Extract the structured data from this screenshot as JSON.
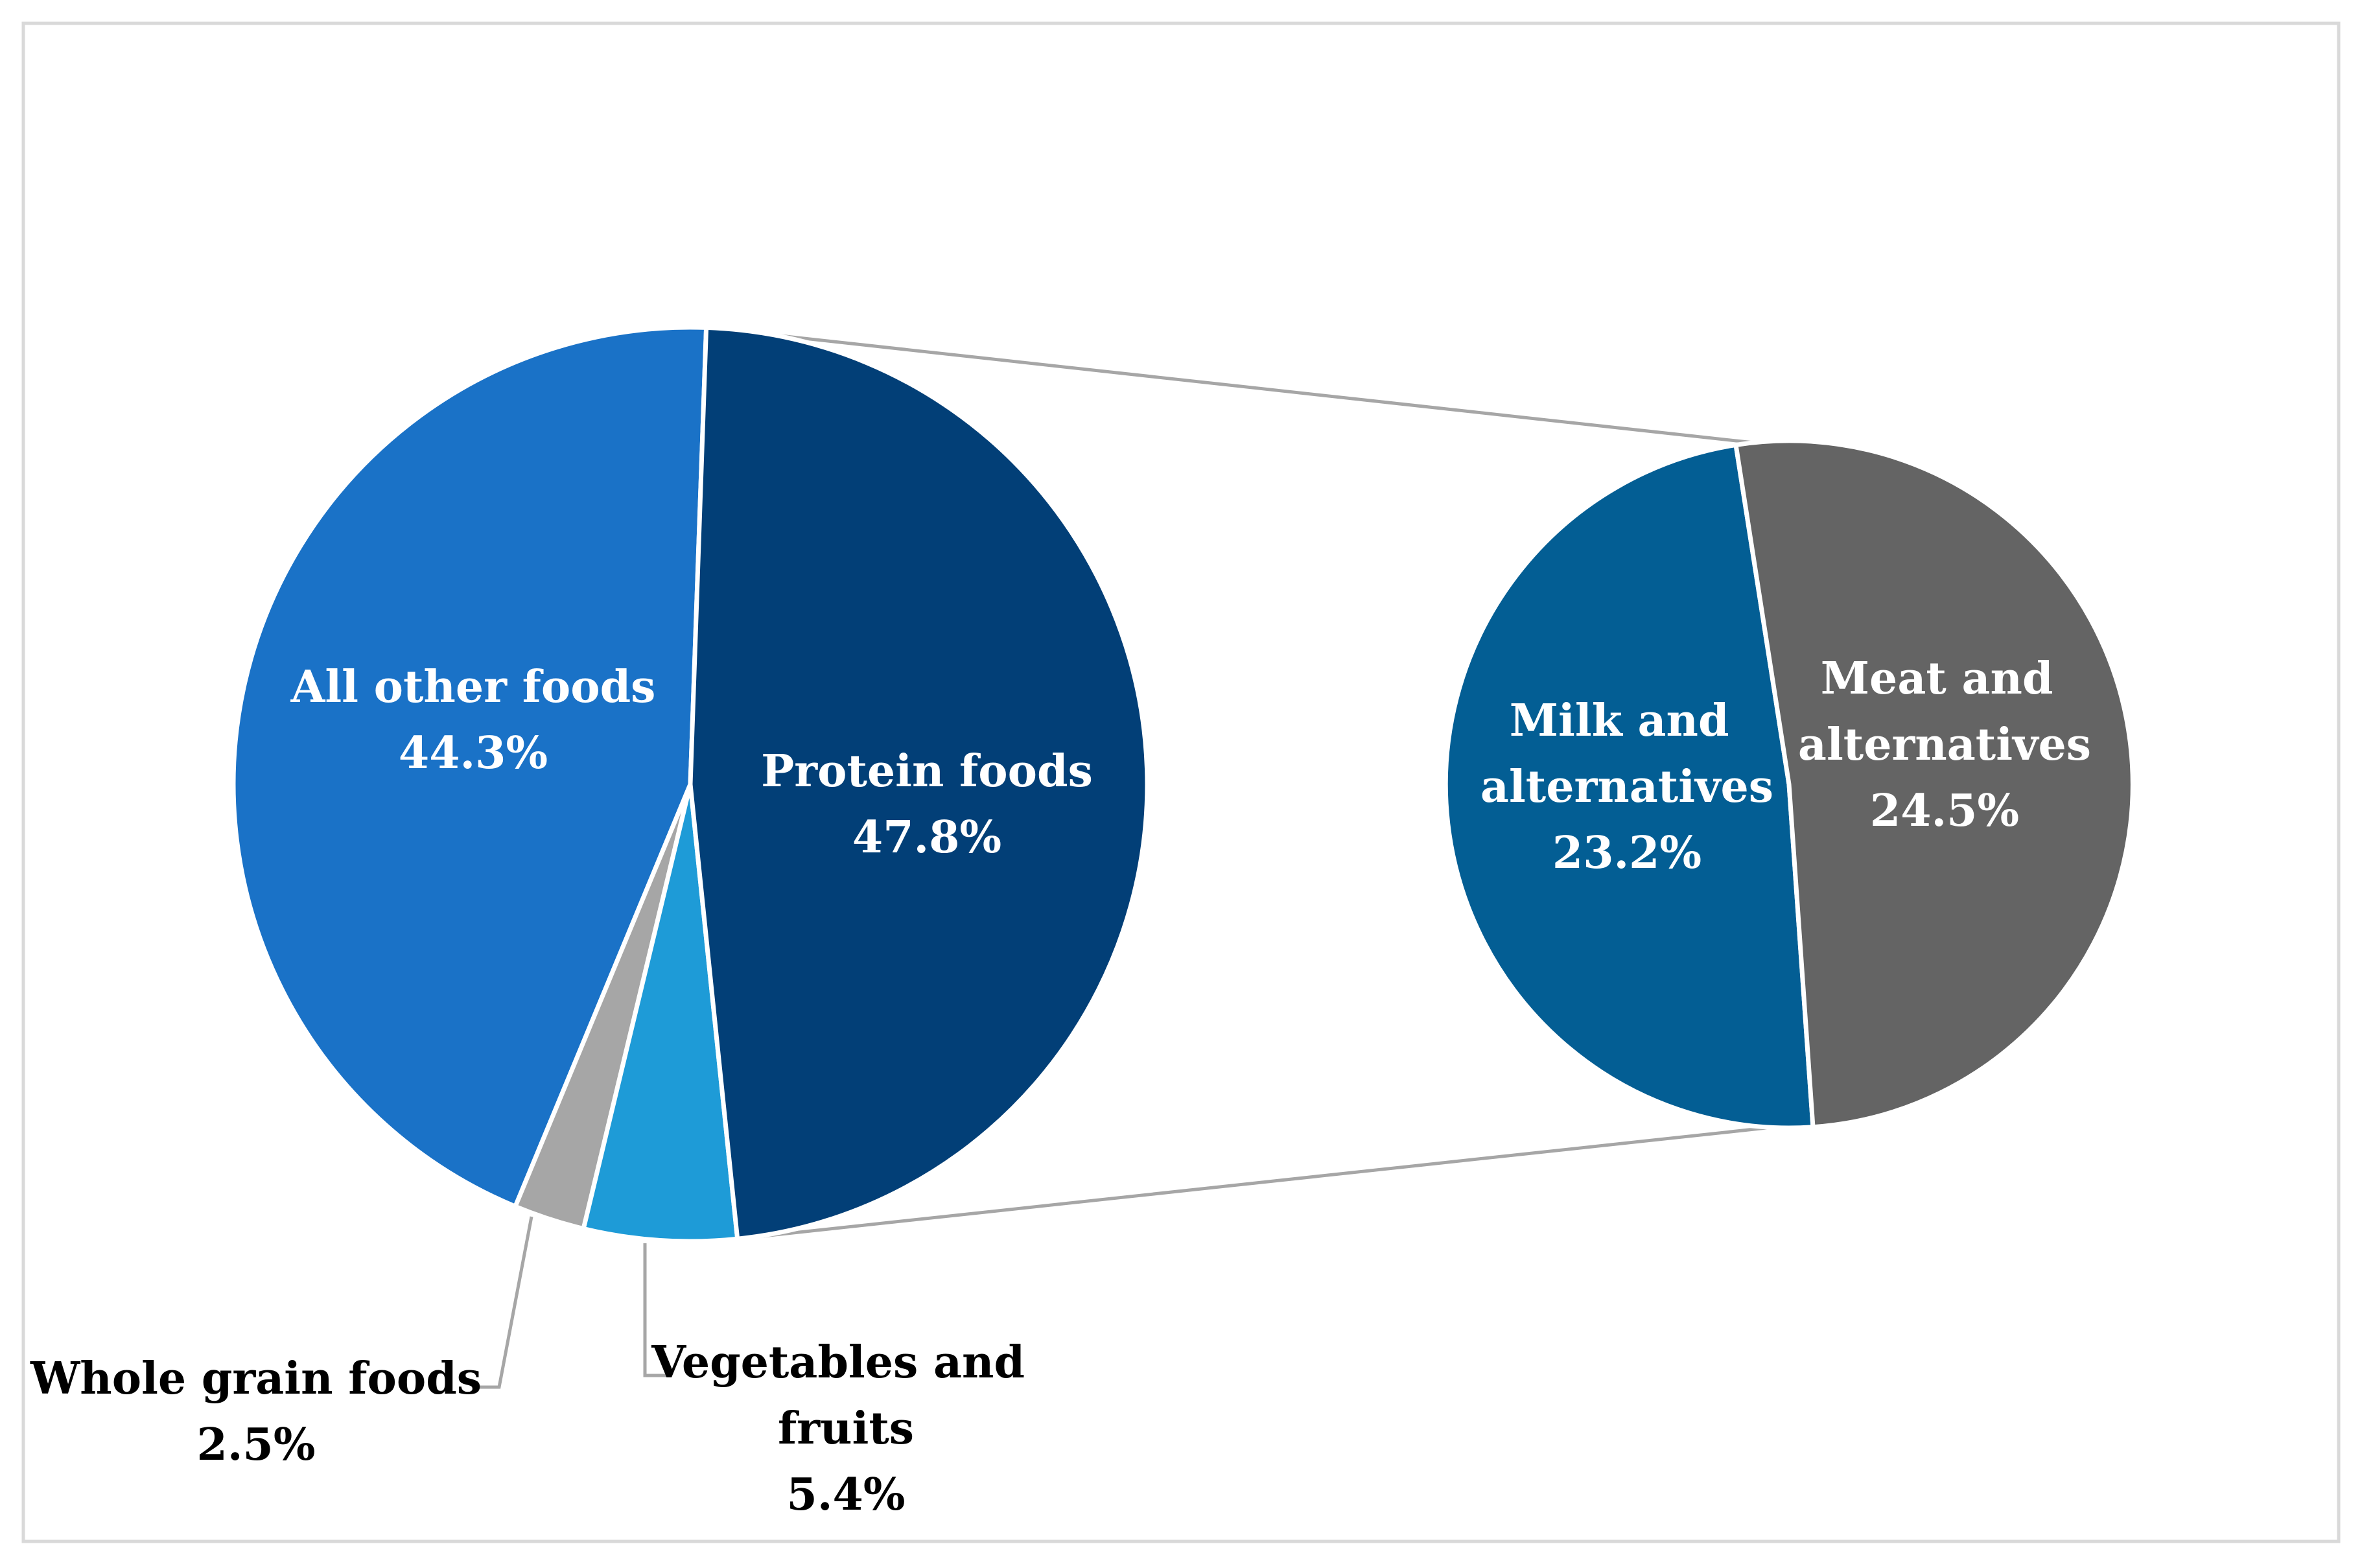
{
  "chart_data": {
    "type": "pie",
    "subtype": "pie-of-pie",
    "title": "",
    "main_pie": {
      "slices": [
        {
          "label": "All other foods",
          "value": 44.3,
          "value_text": "44.3%",
          "color": "#1a72c7"
        },
        {
          "label": "Whole grain foods",
          "value": 2.5,
          "value_text": "2.5%",
          "color": "#a6a6a6"
        },
        {
          "label": "Vegetables and fruits",
          "value": 5.4,
          "value_text": "5.4%",
          "color": "#1e9bd7"
        },
        {
          "label": "Protein foods",
          "value": 47.8,
          "value_text": "47.8%",
          "color": "#023f77"
        }
      ]
    },
    "secondary_pie": {
      "parent": "Protein foods",
      "slices": [
        {
          "label": "Milk and alternatives",
          "value": 23.2,
          "value_text": "23.2%",
          "color": "#035e94"
        },
        {
          "label": "Meat and alternatives",
          "value": 24.5,
          "value_text": "24.5%",
          "color": "#646464"
        }
      ]
    },
    "legend": "none",
    "colors": {
      "border": "#d9d9d9",
      "connector": "#a6a6a6",
      "slice_edge": "#ffffff"
    }
  }
}
